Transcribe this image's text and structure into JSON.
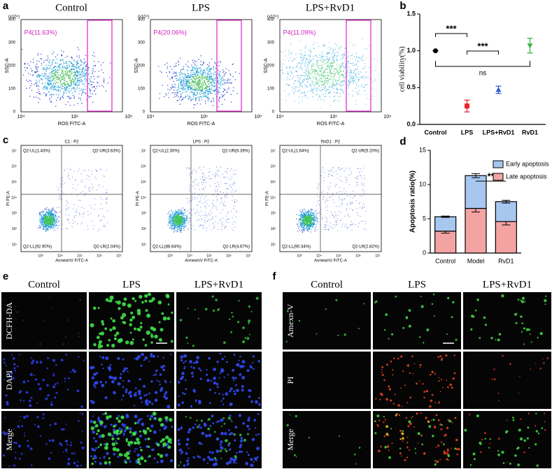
{
  "panel_labels": [
    "a",
    "b",
    "c",
    "d",
    "e",
    "f"
  ],
  "flow_ros": {
    "y_unit": "(x10⁴)",
    "y_axis": "SSC-A",
    "x_axis": "ROS FITC-A",
    "yticks": [
      "0",
      "100",
      "200",
      "300",
      "400"
    ],
    "xticks": [
      "10⁴",
      "10⁶",
      "10⁸"
    ],
    "plots": [
      {
        "title": "Control",
        "gate": "P4(11.63%)"
      },
      {
        "title": "LPS",
        "gate": "P4(20.06%)"
      },
      {
        "title": "LPS+RvD1",
        "gate": "P4(11.09%)"
      }
    ]
  },
  "flow_apoptosis": {
    "y_axis": "PI PE-A",
    "x_axis": "AnnexinV FITC-A",
    "yticks": [
      "10¹",
      "10²",
      "10³",
      "10⁴",
      "10⁵",
      "10⁶",
      "10⁷"
    ],
    "xticks": [
      "10³",
      "10⁴",
      "10⁵",
      "10⁶",
      "10⁷"
    ],
    "plots": [
      {
        "title": "C1 : P2",
        "ul": "Q2-UL(1.43%)",
        "ur": "Q2-UR(3.63%)",
        "ll": "Q2-LL(92.90%)",
        "lr": "Q2-LR(2.04%)"
      },
      {
        "title": "LPS : P2",
        "ul": "Q2-UL(2.30%)",
        "ur": "Q2-UR(6.39%)",
        "ll": "Q2-LL(88.64%)",
        "lr": "Q2-LR(4.67%)"
      },
      {
        "title": "RvD1 : P2",
        "ul": "Q2-UL(1.64%)",
        "ur": "Q2-UR(5.20%)",
        "ll": "Q2-LL(90.34%)",
        "lr": "Q2-LR(2.82%)"
      }
    ]
  },
  "chart_data": [
    {
      "type": "errorpoint",
      "ylabel": "cell viability(%)",
      "categories": [
        "Control",
        "LPS",
        "LPS+RvD1",
        "RvD1"
      ],
      "values": [
        1.0,
        0.25,
        0.47,
        1.07
      ],
      "errors": [
        0,
        0.08,
        0.05,
        0.1
      ],
      "colors": [
        "#000000",
        "#e8262a",
        "#2f5fd6",
        "#3cb34a"
      ],
      "ylim": [
        0,
        1.5
      ],
      "yticks": [
        {
          "value": 0,
          "label": "0.0"
        },
        0.5,
        {
          "value": 1,
          "label": "1.0"
        },
        1.5
      ],
      "annotations": [
        "***",
        "***",
        "ns"
      ]
    },
    {
      "type": "stacked_bar",
      "ylabel": "Apoptosis ratio(%)",
      "categories": [
        "Control",
        "Model",
        "RvD1"
      ],
      "series": [
        {
          "name": "Late apoptosis",
          "color": "#f4a3a3",
          "values": [
            3.2,
            6.5,
            4.6
          ],
          "errors": [
            0.3,
            0.5,
            0.5
          ]
        },
        {
          "name": "Early apoptosis",
          "color": "#a7c7ef",
          "values": [
            2.1,
            4.8,
            2.9
          ],
          "errors": [
            0.1,
            0.3,
            0.2
          ]
        }
      ],
      "ylim": [
        0,
        15
      ],
      "yticks": [
        0,
        5,
        10,
        15
      ],
      "annotations": [
        "**"
      ]
    }
  ],
  "microscopy_e": {
    "columns": [
      "Control",
      "LPS",
      "LPS+RvD1"
    ],
    "rows": [
      "DCFH-DA",
      "DAPI",
      "Merge"
    ]
  },
  "microscopy_f": {
    "columns": [
      "Control",
      "LPS",
      "LPS+RvD1"
    ],
    "rows": [
      "Amexn-V",
      "PI",
      "Merge"
    ]
  }
}
